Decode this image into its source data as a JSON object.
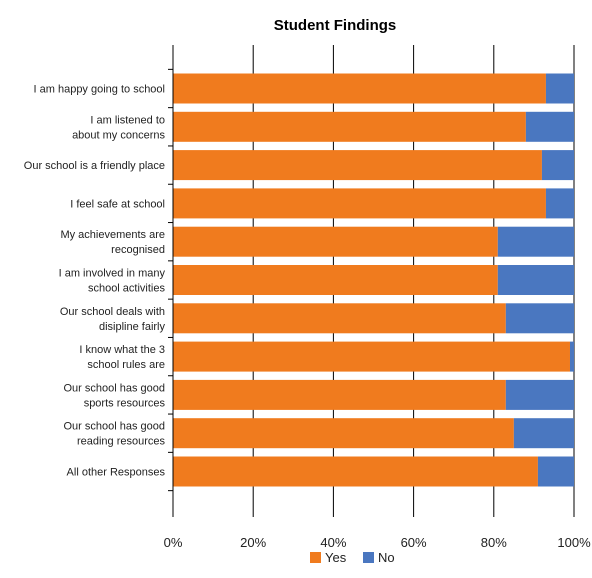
{
  "chart_data": {
    "type": "bar",
    "orientation": "horizontal",
    "stacked": "percent",
    "title": "Student Findings",
    "categories": [
      [
        "I am happy going to school"
      ],
      [
        "I am listened to",
        "about my concerns"
      ],
      [
        "Our school is a friendly place"
      ],
      [
        "I feel safe at school"
      ],
      [
        "My achievements are",
        "recognised"
      ],
      [
        "I am involved in many",
        "school activities"
      ],
      [
        "Our school deals with",
        "disipline fairly"
      ],
      [
        "I know what the 3",
        "school rules are"
      ],
      [
        "Our school has good",
        "sports resources"
      ],
      [
        "Our school has good",
        "reading resources"
      ],
      [
        "All other Responses"
      ]
    ],
    "series": [
      {
        "name": "Yes",
        "color": "#F07B1E",
        "values": [
          93,
          88,
          92,
          93,
          81,
          81,
          83,
          99,
          83,
          85,
          91
        ]
      },
      {
        "name": "No",
        "color": "#4A77C0",
        "values": [
          7,
          12,
          8,
          7,
          19,
          19,
          17,
          1,
          17,
          15,
          9
        ]
      }
    ],
    "xlim": [
      0,
      100
    ],
    "xticks": [
      "0%",
      "20%",
      "40%",
      "60%",
      "80%",
      "100%"
    ],
    "grid": true,
    "legend": "bottom"
  }
}
